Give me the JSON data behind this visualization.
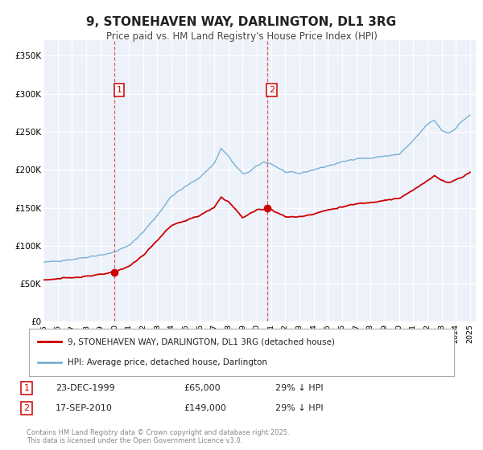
{
  "title": "9, STONEHAVEN WAY, DARLINGTON, DL1 3RG",
  "subtitle": "Price paid vs. HM Land Registry's House Price Index (HPI)",
  "background_color": "#ffffff",
  "plot_bg_color": "#edf2fa",
  "grid_color": "#ffffff",
  "ylim": [
    0,
    370000
  ],
  "yticks": [
    0,
    50000,
    100000,
    150000,
    200000,
    250000,
    300000,
    350000
  ],
  "ytick_labels": [
    "£0",
    "£50K",
    "£100K",
    "£150K",
    "£200K",
    "£250K",
    "£300K",
    "£350K"
  ],
  "sale1_x": 1999.978,
  "sale1_price": 65000,
  "sale2_x": 2010.711,
  "sale2_price": 149000,
  "vline_color": "#e06060",
  "sale_dot_color": "#cc0000",
  "hpi_line_color": "#7ab0d4",
  "price_line_color": "#cc0000",
  "legend_label_price": "9, STONEHAVEN WAY, DARLINGTON, DL1 3RG (detached house)",
  "legend_label_hpi": "HPI: Average price, detached house, Darlington",
  "footer_text": "Contains HM Land Registry data © Crown copyright and database right 2025.\nThis data is licensed under the Open Government Licence v3.0.",
  "annotation1_date": "23-DEC-1999",
  "annotation1_price": "£65,000",
  "annotation1_hpi": "29% ↓ HPI",
  "annotation2_date": "17-SEP-2010",
  "annotation2_price": "£149,000",
  "annotation2_hpi": "29% ↓ HPI",
  "hpi_anchors_x": [
    1995.0,
    1995.5,
    1996.0,
    1997.0,
    1998.0,
    1999.0,
    1999.5,
    2000.0,
    2001.0,
    2002.0,
    2003.0,
    2004.0,
    2005.0,
    2006.0,
    2007.0,
    2007.5,
    2008.0,
    2008.5,
    2009.0,
    2009.5,
    2010.0,
    2010.5,
    2011.0,
    2012.0,
    2013.0,
    2014.0,
    2015.0,
    2016.0,
    2017.0,
    2018.0,
    2019.0,
    2020.0,
    2021.0,
    2022.0,
    2022.5,
    2023.0,
    2023.5,
    2024.0,
    2024.5,
    2025.0
  ],
  "hpi_anchors_y": [
    78000,
    79000,
    80000,
    82000,
    85000,
    88000,
    89000,
    92000,
    100000,
    118000,
    140000,
    165000,
    178000,
    190000,
    208000,
    228000,
    218000,
    205000,
    195000,
    197000,
    205000,
    210000,
    208000,
    197000,
    195000,
    200000,
    205000,
    210000,
    215000,
    215000,
    218000,
    220000,
    238000,
    260000,
    265000,
    252000,
    248000,
    255000,
    265000,
    272000
  ],
  "price_anchors_x": [
    1995.0,
    1996.0,
    1997.0,
    1998.0,
    1999.0,
    1999.978,
    2001.0,
    2002.0,
    2003.0,
    2004.0,
    2005.0,
    2006.0,
    2007.0,
    2007.5,
    2008.0,
    2008.5,
    2009.0,
    2009.5,
    2010.0,
    2010.5,
    2010.711,
    2011.0,
    2011.5,
    2012.0,
    2013.0,
    2014.0,
    2015.0,
    2016.0,
    2017.0,
    2018.0,
    2019.0,
    2020.0,
    2021.0,
    2022.0,
    2022.5,
    2023.0,
    2023.5,
    2024.0,
    2024.5,
    2025.0
  ],
  "price_anchors_y": [
    55000,
    56500,
    58000,
    60000,
    62000,
    65000,
    73000,
    87000,
    107000,
    127000,
    133000,
    140000,
    150000,
    164000,
    158000,
    148000,
    137000,
    142000,
    147000,
    148500,
    149000,
    148000,
    143000,
    138000,
    138000,
    142000,
    147000,
    151000,
    155000,
    157000,
    160000,
    162000,
    173000,
    186000,
    192000,
    186000,
    183000,
    187000,
    191000,
    197000
  ]
}
